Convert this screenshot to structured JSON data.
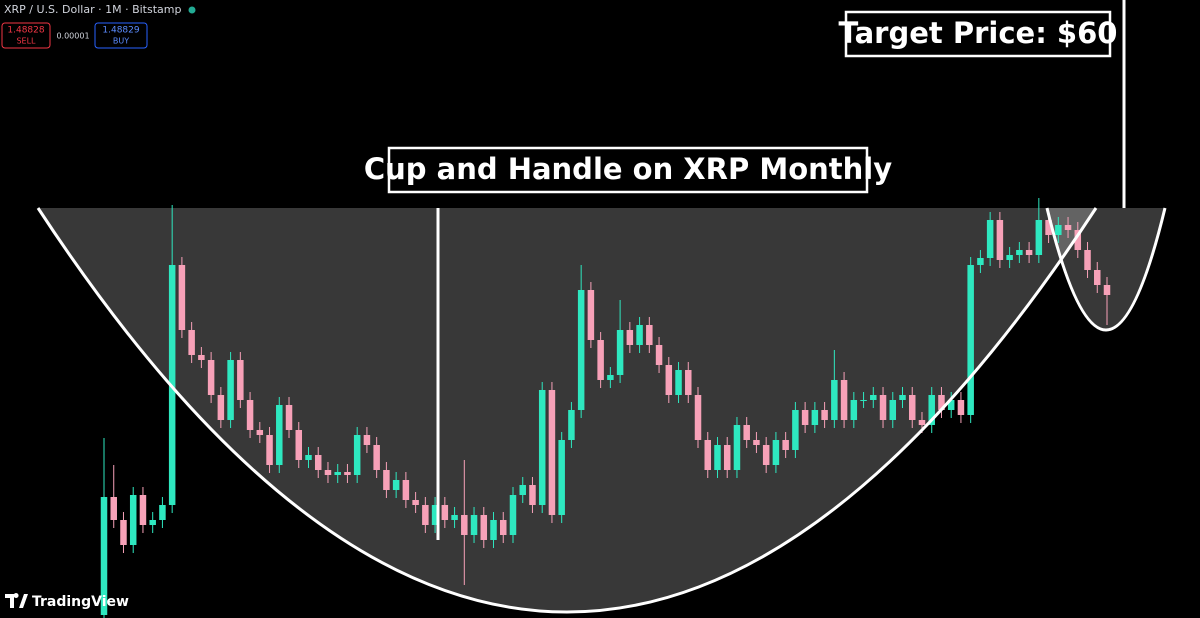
{
  "header": {
    "symbol": "XRP / U.S. Dollar · 1M · Bitstamp",
    "sell_price": "1.48828",
    "sell_label": "SELL",
    "spread": "0.00001",
    "buy_price": "1.48829",
    "buy_label": "BUY"
  },
  "branding": "TradingView",
  "chart_data": {
    "type": "candlestick",
    "up_color": "#2ee8c0",
    "down_color": "#f7a1b8",
    "ylim": [
      0,
      618
    ],
    "annotations": [
      "Cup and Handle on XRP Monthly",
      "Target Price: $60"
    ],
    "open": [
      3,
      121,
      98,
      73,
      123,
      93,
      98,
      113,
      353,
      288,
      263,
      258,
      223,
      198,
      258,
      218,
      188,
      183,
      153,
      213,
      188,
      158,
      163,
      148,
      143,
      146,
      143,
      183,
      173,
      148,
      128,
      138,
      118,
      113,
      93,
      113,
      98,
      103,
      83,
      103,
      78,
      98,
      83,
      123,
      133,
      113,
      228,
      103,
      178,
      208,
      328,
      278,
      238,
      243,
      288,
      273,
      293,
      273,
      253,
      223,
      248,
      223,
      178,
      148,
      173,
      148,
      193,
      178,
      173,
      153,
      178,
      168,
      208,
      193,
      208,
      198,
      238,
      198,
      218,
      218,
      223,
      198,
      218,
      223,
      198,
      193,
      223,
      208,
      218,
      203,
      353,
      360,
      398,
      358,
      363,
      368,
      363,
      398,
      383,
      393,
      388,
      368,
      348,
      333
    ],
    "high": [
      180,
      153,
      106,
      131,
      131,
      106,
      121,
      413,
      361,
      296,
      271,
      266,
      231,
      266,
      266,
      226,
      196,
      191,
      221,
      221,
      196,
      171,
      171,
      156,
      154,
      154,
      191,
      191,
      181,
      156,
      146,
      146,
      126,
      121,
      121,
      121,
      111,
      158,
      111,
      111,
      106,
      106,
      131,
      141,
      141,
      236,
      236,
      186,
      216,
      353,
      336,
      286,
      251,
      318,
      296,
      301,
      301,
      281,
      261,
      256,
      256,
      231,
      186,
      181,
      181,
      201,
      201,
      186,
      181,
      186,
      186,
      216,
      216,
      216,
      216,
      268,
      246,
      226,
      226,
      231,
      231,
      226,
      231,
      231,
      206,
      231,
      231,
      226,
      226,
      361,
      368,
      406,
      406,
      371,
      376,
      376,
      420,
      406,
      401,
      401,
      396,
      376,
      356,
      341
    ],
    "low": [
      0,
      90,
      65,
      65,
      85,
      85,
      90,
      105,
      280,
      255,
      250,
      215,
      190,
      190,
      210,
      180,
      175,
      145,
      145,
      180,
      150,
      150,
      140,
      135,
      135,
      135,
      135,
      165,
      140,
      120,
      120,
      110,
      105,
      85,
      85,
      90,
      90,
      33,
      75,
      70,
      70,
      75,
      75,
      115,
      105,
      105,
      95,
      95,
      170,
      200,
      270,
      230,
      230,
      235,
      265,
      265,
      265,
      245,
      215,
      215,
      215,
      170,
      140,
      140,
      140,
      140,
      170,
      165,
      145,
      145,
      160,
      160,
      185,
      185,
      190,
      190,
      190,
      190,
      210,
      210,
      190,
      190,
      210,
      190,
      185,
      185,
      200,
      200,
      195,
      195,
      345,
      352,
      350,
      350,
      355,
      355,
      355,
      375,
      375,
      380,
      360,
      340,
      325,
      293
    ],
    "close": [
      121,
      98,
      73,
      123,
      93,
      98,
      113,
      353,
      288,
      263,
      258,
      223,
      198,
      258,
      218,
      188,
      183,
      153,
      213,
      188,
      158,
      163,
      148,
      143,
      146,
      143,
      183,
      173,
      148,
      128,
      138,
      118,
      113,
      93,
      113,
      98,
      103,
      83,
      103,
      78,
      98,
      83,
      123,
      133,
      113,
      228,
      103,
      178,
      208,
      328,
      278,
      238,
      243,
      288,
      273,
      293,
      273,
      253,
      223,
      248,
      223,
      178,
      148,
      173,
      148,
      193,
      178,
      173,
      153,
      178,
      168,
      208,
      193,
      208,
      198,
      238,
      198,
      218,
      218,
      223,
      198,
      218,
      223,
      198,
      193,
      223,
      208,
      218,
      203,
      353,
      360,
      398,
      358,
      363,
      368,
      363,
      398,
      383,
      393,
      388,
      368,
      348,
      333,
      323
    ]
  }
}
